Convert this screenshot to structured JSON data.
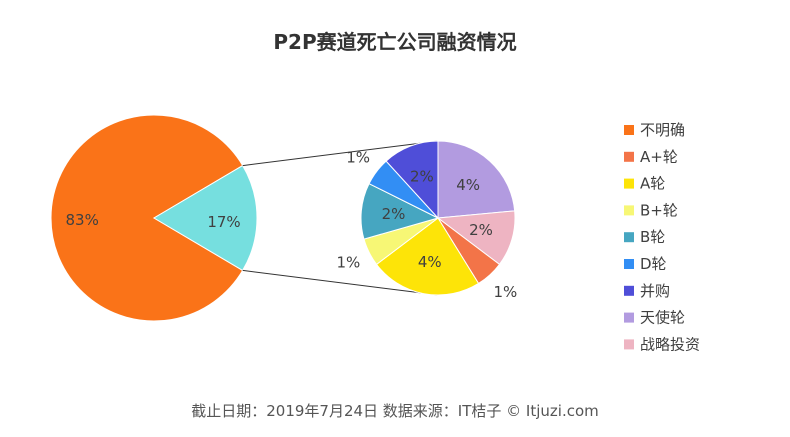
{
  "chart_data": {
    "type": "pie",
    "title": "P2P赛道死亡公司融资情况",
    "footer": "截止日期：2019年7月24日     数据来源：IT桔子 © Itjuzi.com",
    "legend_position": "right",
    "main_pie": {
      "slices": [
        {
          "name": "",
          "value": 83,
          "label": "83%",
          "color": "#fa7318"
        },
        {
          "name": "",
          "value": 17,
          "label": "17%",
          "color": "#76dfdf"
        }
      ]
    },
    "detail_pie": {
      "slices": [
        {
          "name": "天使轮",
          "value": 4,
          "label": "4%",
          "color": "#b29be0"
        },
        {
          "name": "战略投资",
          "value": 2,
          "label": "2%",
          "color": "#eeb4c2"
        },
        {
          "name": "A+轮",
          "value": 1,
          "label": "1%",
          "color": "#f37448"
        },
        {
          "name": "A轮",
          "value": 4,
          "label": "4%",
          "color": "#fde408"
        },
        {
          "name": "B+轮",
          "value": 1,
          "label": "1%",
          "color": "#f7f775"
        },
        {
          "name": "B轮",
          "value": 2,
          "label": "2%",
          "color": "#46a6c1"
        },
        {
          "name": "D轮",
          "value": 1,
          "label": "1%",
          "color": "#328ef4"
        },
        {
          "name": "并购",
          "value": 2,
          "label": "2%",
          "color": "#4f4ed8"
        }
      ]
    },
    "legend": [
      {
        "name": "不明确",
        "color": "#fa7318"
      },
      {
        "name": "A+轮",
        "color": "#f37448"
      },
      {
        "name": "A轮",
        "color": "#fde408"
      },
      {
        "name": "B+轮",
        "color": "#f7f775"
      },
      {
        "name": "B轮",
        "color": "#46a6c1"
      },
      {
        "name": "D轮",
        "color": "#328ef4"
      },
      {
        "name": "并购",
        "color": "#4f4ed8"
      },
      {
        "name": "天使轮",
        "color": "#b29be0"
      },
      {
        "name": "战略投资",
        "color": "#eeb4c2"
      }
    ]
  }
}
